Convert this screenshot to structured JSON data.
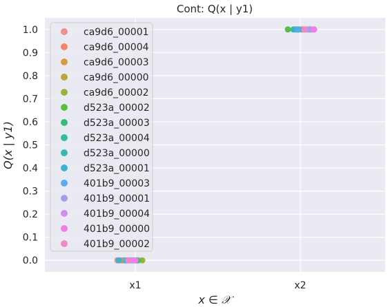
{
  "chart_data": {
    "type": "scatter",
    "title": "Cont: Q(x | y1)",
    "xlabel": "x ∈ 𝒳",
    "ylabel": "Q(x | y1)",
    "categories": [
      "x1",
      "x2"
    ],
    "ylim": [
      -0.05,
      1.05
    ],
    "yticks": [
      "0.0",
      "0.1",
      "0.2",
      "0.3",
      "0.4",
      "0.5",
      "0.6",
      "0.7",
      "0.8",
      "0.9",
      "1.0"
    ],
    "grid": true,
    "legend_placement": "top-left",
    "series": [
      {
        "name": "ca9d6_00001",
        "color": "#f28e8e",
        "values": [
          0.0,
          1.0
        ]
      },
      {
        "name": "ca9d6_00004",
        "color": "#f0866a",
        "values": [
          0.0,
          1.0
        ]
      },
      {
        "name": "ca9d6_00003",
        "color": "#d89a45",
        "values": [
          0.0,
          1.0
        ]
      },
      {
        "name": "ca9d6_00000",
        "color": "#b8a63c",
        "values": [
          0.0,
          1.0
        ]
      },
      {
        "name": "ca9d6_00002",
        "color": "#97b43c",
        "values": [
          0.0,
          1.0
        ]
      },
      {
        "name": "d523a_00002",
        "color": "#5cbf3e",
        "values": [
          0.0,
          1.0
        ]
      },
      {
        "name": "d523a_00003",
        "color": "#36bb78",
        "values": [
          0.0,
          1.0
        ]
      },
      {
        "name": "d523a_00004",
        "color": "#36bba0",
        "values": [
          0.0,
          1.0
        ]
      },
      {
        "name": "d523a_00000",
        "color": "#38b8b5",
        "values": [
          0.0,
          1.0
        ]
      },
      {
        "name": "d523a_00001",
        "color": "#3ab4cf",
        "values": [
          0.0,
          1.0
        ]
      },
      {
        "name": "401b9_00003",
        "color": "#5aaaee",
        "values": [
          0.0,
          1.0
        ]
      },
      {
        "name": "401b9_00001",
        "color": "#a59ef0",
        "values": [
          0.0,
          1.0
        ]
      },
      {
        "name": "401b9_00004",
        "color": "#d08ef0",
        "values": [
          0.0,
          1.0
        ]
      },
      {
        "name": "401b9_00000",
        "color": "#f07ee6",
        "values": [
          0.0,
          1.0
        ]
      },
      {
        "name": "401b9_00002",
        "color": "#f287c6",
        "values": [
          0.0,
          1.0
        ]
      }
    ]
  }
}
